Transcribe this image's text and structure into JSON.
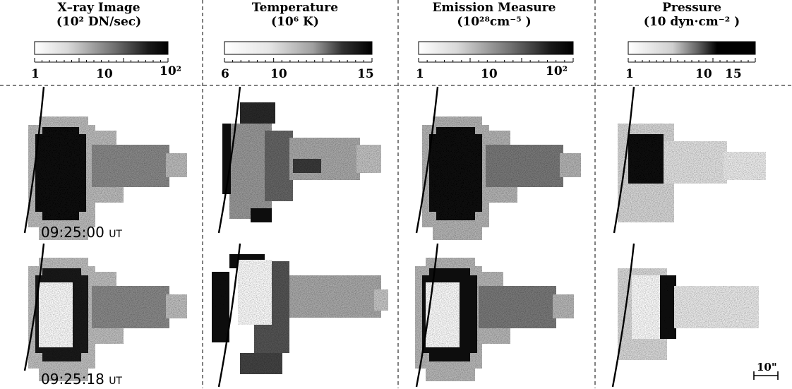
{
  "panels": [
    {
      "title": "X–ray Image",
      "unit": "(10² DN/sec)",
      "ticks": [
        "1",
        "10",
        "10²"
      ],
      "cbar": "xray"
    },
    {
      "title": "Temperature",
      "unit": "(10⁶ K)",
      "ticks": [
        "6",
        "10",
        "15"
      ],
      "cbar": "temp"
    },
    {
      "title": "Emission Measure",
      "unit": "(10²⁸cm⁻⁵ )",
      "ticks": [
        "1",
        "10",
        "10²"
      ],
      "cbar": "em"
    },
    {
      "title": "Pressure",
      "unit": "(10 dyn·cm⁻² )",
      "ticks": [
        "1",
        "10",
        "15"
      ],
      "cbar": "pres"
    }
  ],
  "times": [
    {
      "value": "09:25:00",
      "suffix": "UT"
    },
    {
      "value": "09:25:18",
      "suffix": "UT"
    }
  ],
  "scale_bar": {
    "label": "10\""
  }
}
